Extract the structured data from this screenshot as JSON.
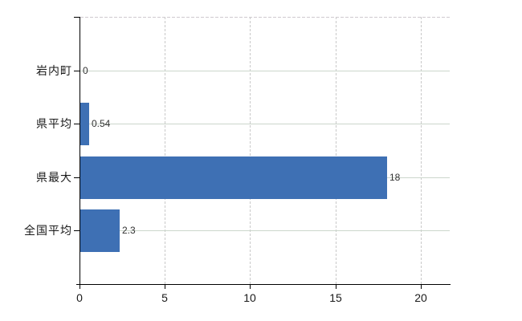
{
  "chart_data": {
    "type": "bar",
    "orientation": "horizontal",
    "title": "",
    "xlabel": "",
    "ylabel": "",
    "categories": [
      "岩内町",
      "県平均",
      "県最大",
      "全国平均"
    ],
    "values": [
      0,
      0.54,
      18,
      2.3
    ],
    "value_labels": [
      "0",
      "0.54",
      "18",
      "2.3"
    ],
    "x_ticks": [
      0,
      5,
      10,
      15,
      20
    ],
    "x_tick_labels": [
      "0",
      "5",
      "10",
      "15",
      "20"
    ],
    "xlim": [
      0,
      21.7
    ],
    "grid": "on",
    "legend": "none",
    "colors": {
      "bar": "#3e70b4",
      "axis": "#000000",
      "h_grid": "#ccd6cc",
      "v_grid": "#c9c9c9",
      "top_border": "#cfcacf",
      "text": "#1a1a1a",
      "value_text": "#333333",
      "background": "#ffffff"
    }
  }
}
